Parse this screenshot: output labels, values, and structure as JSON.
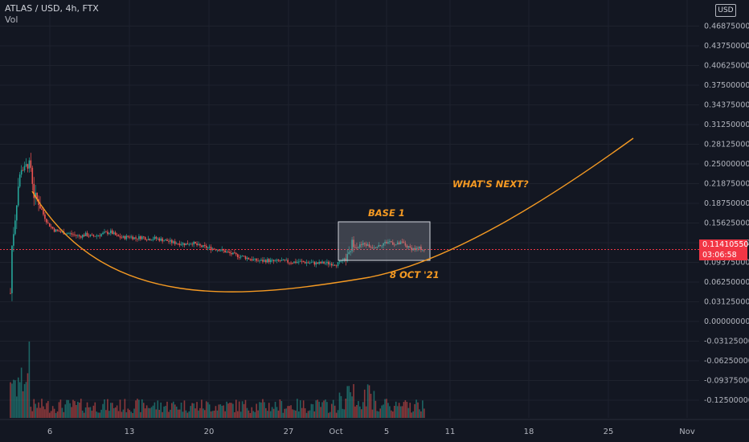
{
  "header": {
    "symbol_line": "ATLAS / USD, 4h, FTX",
    "volume_label": "Vol"
  },
  "currency_badge": "USD",
  "price_axis": {
    "labels": [
      "0.46875000",
      "0.43750000",
      "0.40625000",
      "0.37500000",
      "0.34375000",
      "0.31250000",
      "0.28125000",
      "0.25000000",
      "0.21875000",
      "0.18750000",
      "0.15625000",
      "0.12500000",
      "0.09375000",
      "0.06250000",
      "0.03125000",
      "0.00000000",
      "-0.03125000",
      "-0.06250000",
      "-0.09375000",
      "-0.12500000"
    ],
    "values": [
      0.46875,
      0.4375,
      0.40625,
      0.375,
      0.34375,
      0.3125,
      0.28125,
      0.25,
      0.21875,
      0.1875,
      0.15625,
      0.125,
      0.09375,
      0.0625,
      0.03125,
      0,
      -0.03125,
      -0.0625,
      -0.09375,
      -0.125
    ]
  },
  "last_price": {
    "price": "0.11410550",
    "countdown": "03:06:58",
    "value": 0.1141055,
    "color": "#f23645"
  },
  "time_axis": [
    "6",
    "13",
    "20",
    "27",
    "Oct",
    "5",
    "11",
    "18",
    "25",
    "Nov"
  ],
  "annotations": {
    "whats_next": "WHAT'S NEXT?",
    "base": "BASE 1",
    "date": "8 OCT '21"
  },
  "colors": {
    "background": "#131722",
    "up": "#26a69a",
    "down": "#ef5350",
    "curve": "#f59a23",
    "box_fill": "#8d909a",
    "box_border": "#d1d4dc",
    "grid": "#1e222d",
    "price_line": "#f23645"
  },
  "chart_data": {
    "type": "candlestick",
    "price_unit": "USD",
    "price_range": [
      -0.14,
      0.47
    ],
    "x_axis": {
      "ticks": [
        "6",
        "13",
        "20",
        "27",
        "Oct",
        "5",
        "11",
        "18",
        "25",
        "Nov"
      ]
    },
    "anchors": [
      [
        0,
        0.045
      ],
      [
        1,
        0.12
      ],
      [
        3,
        0.165
      ],
      [
        5,
        0.215
      ],
      [
        7,
        0.245
      ],
      [
        9,
        0.24
      ],
      [
        11,
        0.25
      ],
      [
        13,
        0.245
      ],
      [
        15,
        0.2
      ],
      [
        18,
        0.19
      ],
      [
        21,
        0.17
      ],
      [
        24,
        0.155
      ],
      [
        28,
        0.145
      ],
      [
        32,
        0.142
      ],
      [
        36,
        0.14
      ],
      [
        40,
        0.138
      ],
      [
        44,
        0.135
      ],
      [
        48,
        0.138
      ],
      [
        52,
        0.135
      ],
      [
        56,
        0.137
      ],
      [
        60,
        0.14
      ],
      [
        64,
        0.142
      ],
      [
        68,
        0.135
      ],
      [
        72,
        0.133
      ],
      [
        76,
        0.135
      ],
      [
        80,
        0.132
      ],
      [
        84,
        0.134
      ],
      [
        88,
        0.131
      ],
      [
        92,
        0.132
      ],
      [
        96,
        0.13
      ],
      [
        100,
        0.128
      ],
      [
        104,
        0.125
      ],
      [
        108,
        0.124
      ],
      [
        112,
        0.123
      ],
      [
        116,
        0.125
      ],
      [
        120,
        0.12
      ],
      [
        124,
        0.118
      ],
      [
        128,
        0.116
      ],
      [
        132,
        0.115
      ],
      [
        136,
        0.112
      ],
      [
        140,
        0.108
      ],
      [
        144,
        0.105
      ],
      [
        148,
        0.103
      ],
      [
        152,
        0.1
      ],
      [
        156,
        0.097
      ],
      [
        160,
        0.096
      ],
      [
        164,
        0.097
      ],
      [
        168,
        0.095
      ],
      [
        172,
        0.096
      ],
      [
        176,
        0.095
      ],
      [
        180,
        0.094
      ],
      [
        184,
        0.095
      ],
      [
        188,
        0.094
      ],
      [
        192,
        0.093
      ],
      [
        196,
        0.092
      ],
      [
        200,
        0.093
      ],
      [
        204,
        0.092
      ],
      [
        208,
        0.091
      ],
      [
        212,
        0.095
      ],
      [
        216,
        0.105
      ],
      [
        218,
        0.125
      ],
      [
        222,
        0.12
      ],
      [
        226,
        0.123
      ],
      [
        230,
        0.118
      ],
      [
        234,
        0.12
      ],
      [
        238,
        0.124
      ],
      [
        242,
        0.127
      ],
      [
        246,
        0.122
      ],
      [
        250,
        0.125
      ],
      [
        254,
        0.117
      ],
      [
        258,
        0.115
      ],
      [
        262,
        0.116
      ],
      [
        264,
        0.1141
      ]
    ],
    "annotations": [
      {
        "type": "curve",
        "label": ""
      },
      {
        "type": "rectangle",
        "label": "BASE 1"
      },
      {
        "type": "text",
        "label": "8 OCT '21"
      },
      {
        "type": "text",
        "label": "WHAT'S NEXT?"
      }
    ],
    "volume_shown": true
  }
}
